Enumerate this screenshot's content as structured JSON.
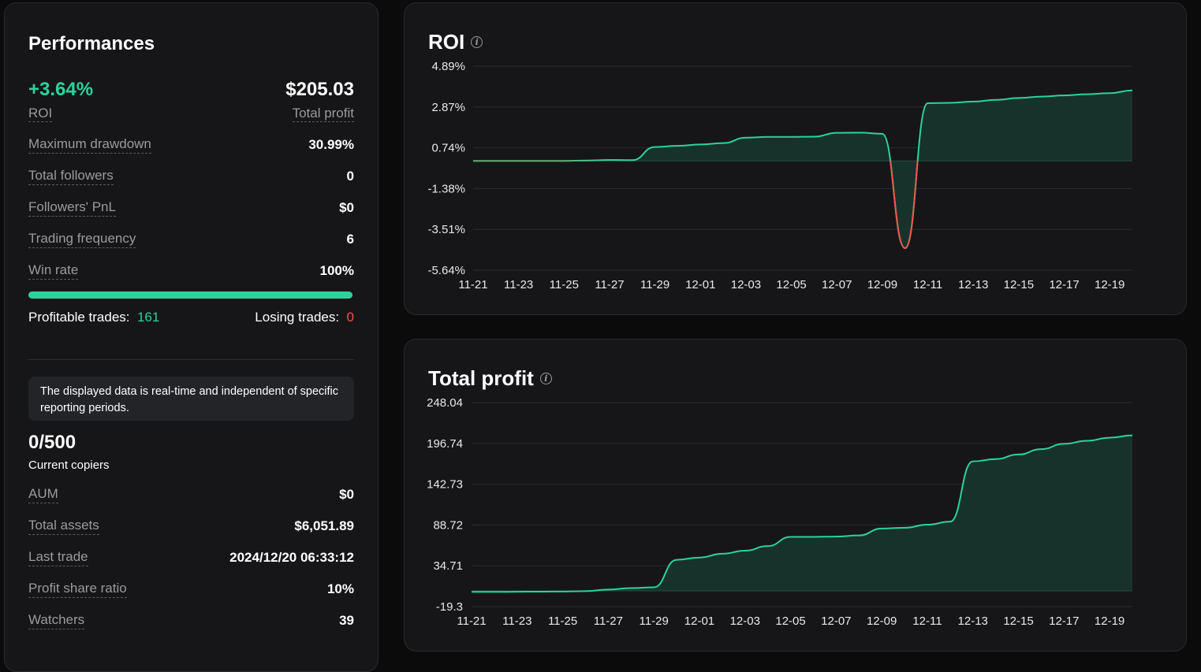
{
  "performance": {
    "title": "Performances",
    "roi_value": "+3.64%",
    "roi_label": "ROI",
    "total_profit_value": "$205.03",
    "total_profit_label": "Total profit",
    "stats": [
      {
        "label": "Maximum drawdown",
        "value": "30.99%"
      },
      {
        "label": "Total followers",
        "value": "0"
      },
      {
        "label": "Followers' PnL",
        "value": "$0"
      },
      {
        "label": "Trading frequency",
        "value": "6"
      },
      {
        "label": "Win rate",
        "value": "100%"
      }
    ],
    "win_rate_fraction": 1.0,
    "profitable_label": "Profitable trades:",
    "profitable_value": "161",
    "losing_label": "Losing trades:",
    "losing_value": "0",
    "note": "The displayed data is real-time and independent of specific reporting periods.",
    "copiers_value": "0/500",
    "copiers_label": "Current copiers",
    "stats2": [
      {
        "label": "AUM",
        "value": "$0"
      },
      {
        "label": "Total assets",
        "value": "$6,051.89"
      },
      {
        "label": "Last trade",
        "value": "2024/12/20 06:33:12"
      },
      {
        "label": "Profit share ratio",
        "value": "10%"
      },
      {
        "label": "Watchers",
        "value": "39"
      }
    ]
  },
  "icons": {
    "info": "info-icon"
  },
  "colors": {
    "accent": "#2bd39a",
    "negative": "#f0564b",
    "panel": "#161618",
    "fill": "#17352e"
  },
  "chart_data": [
    {
      "type": "area",
      "title": "ROI",
      "ylabel": "%",
      "x": [
        "11-21",
        "11-22",
        "11-23",
        "11-24",
        "11-25",
        "11-26",
        "11-27",
        "11-28",
        "11-29",
        "11-30",
        "12-01",
        "12-02",
        "12-03",
        "12-04",
        "12-05",
        "12-06",
        "12-07",
        "12-08",
        "12-09",
        "12-10",
        "12-11",
        "12-12",
        "12-13",
        "12-14",
        "12-15",
        "12-16",
        "12-17",
        "12-18",
        "12-19",
        "12-20"
      ],
      "values": [
        0.0,
        0.0,
        0.0,
        0.0,
        0.0,
        0.02,
        0.05,
        0.04,
        0.72,
        0.78,
        0.85,
        0.92,
        1.2,
        1.24,
        1.24,
        1.25,
        1.45,
        1.46,
        1.4,
        -4.5,
        2.98,
        3.0,
        3.06,
        3.15,
        3.25,
        3.32,
        3.38,
        3.44,
        3.5,
        3.64
      ],
      "xticks": [
        "11-21",
        "11-23",
        "11-25",
        "11-27",
        "11-29",
        "12-01",
        "12-03",
        "12-05",
        "12-07",
        "12-09",
        "12-11",
        "12-13",
        "12-15",
        "12-17",
        "12-19"
      ],
      "yticks": [
        "4.89%",
        "2.87%",
        "0.74%",
        "-1.38%",
        "-3.51%",
        "-5.64%"
      ],
      "ylim": [
        -5.64,
        4.89
      ]
    },
    {
      "type": "area",
      "title": "Total profit",
      "ylabel": "$",
      "x": [
        "11-21",
        "11-22",
        "11-23",
        "11-24",
        "11-25",
        "11-26",
        "11-27",
        "11-28",
        "11-29",
        "11-30",
        "12-01",
        "12-02",
        "12-03",
        "12-04",
        "12-05",
        "12-06",
        "12-07",
        "12-08",
        "12-09",
        "12-10",
        "12-11",
        "12-12",
        "12-13",
        "12-14",
        "12-15",
        "12-16",
        "12-17",
        "12-18",
        "12-19",
        "12-20"
      ],
      "values": [
        0.0,
        0.0,
        0.2,
        0.3,
        0.5,
        1.0,
        3.0,
        5.0,
        6.0,
        42.0,
        45.0,
        50.0,
        54.0,
        60.0,
        72.0,
        72.0,
        72.5,
        74.0,
        83.0,
        84.0,
        88.0,
        92.0,
        171.0,
        174.0,
        180.0,
        187.0,
        194.0,
        198.0,
        202.0,
        205.03
      ],
      "xticks": [
        "11-21",
        "11-23",
        "11-25",
        "11-27",
        "11-29",
        "12-01",
        "12-03",
        "12-05",
        "12-07",
        "12-09",
        "12-11",
        "12-13",
        "12-15",
        "12-17",
        "12-19"
      ],
      "yticks": [
        "248.04",
        "196.74",
        "142.73",
        "88.72",
        "34.71",
        "-19.3"
      ],
      "ylim": [
        -19.3,
        248.04
      ]
    }
  ]
}
